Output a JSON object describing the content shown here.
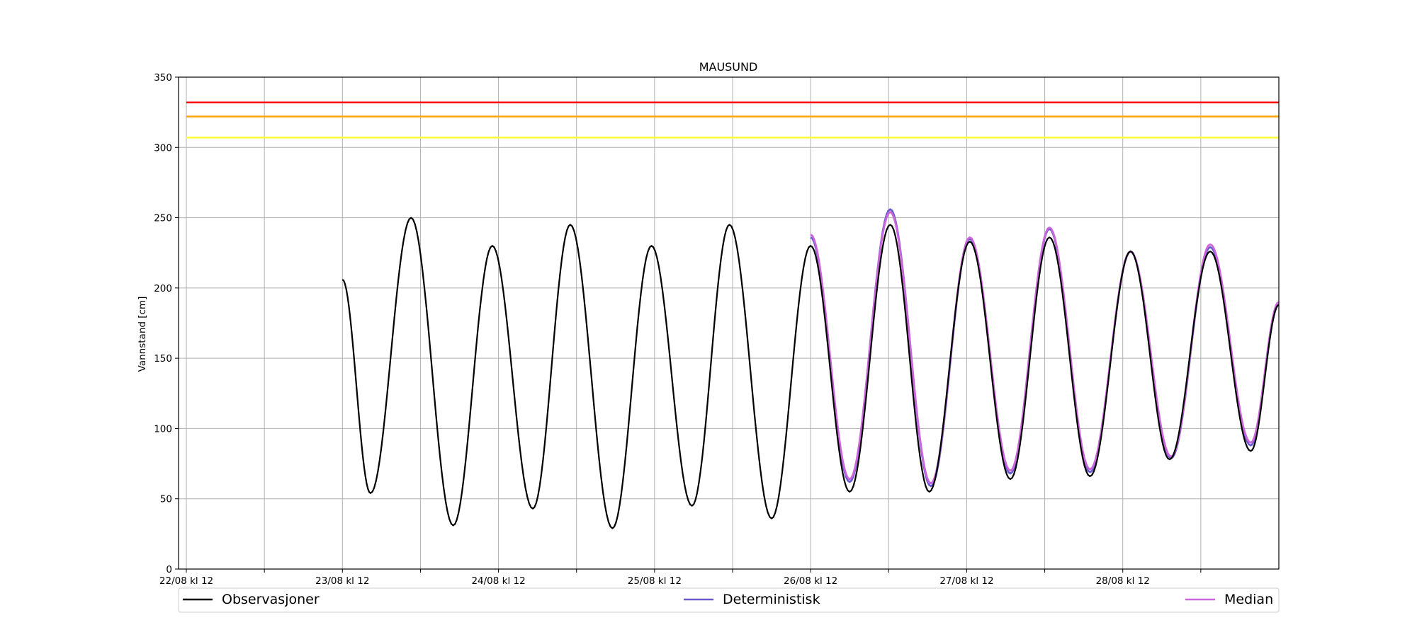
{
  "chart_data": {
    "type": "line",
    "title": "MAUSUND",
    "xlabel": "",
    "ylabel": "Vannstand [cm]",
    "xlim": [
      -0.05,
      7
    ],
    "ylim": [
      0,
      350
    ],
    "yticks": [
      0,
      50,
      100,
      150,
      200,
      250,
      300,
      350
    ],
    "xtick_positions": [
      0,
      0.5,
      1,
      1.5,
      2,
      2.5,
      3,
      3.5,
      4,
      4.5,
      5,
      5.5,
      6,
      6.5
    ],
    "xtick_labels": [
      {
        "pos": 0,
        "label": "22/08 kl 12"
      },
      {
        "pos": 1,
        "label": "23/08 kl 12"
      },
      {
        "pos": 2,
        "label": "24/08 kl 12"
      },
      {
        "pos": 3,
        "label": "25/08 kl 12"
      },
      {
        "pos": 4,
        "label": "26/08 kl 12"
      },
      {
        "pos": 5,
        "label": "27/08 kl 12"
      },
      {
        "pos": 6,
        "label": "28/08 kl 12"
      }
    ],
    "grid": true,
    "legend": "bottom",
    "thresholds": [
      {
        "value": 332,
        "color": "#ff0000"
      },
      {
        "value": 322,
        "color": "#ffa500"
      },
      {
        "value": 307,
        "color": "#ffff33"
      }
    ],
    "series": [
      {
        "name": "Observasjoner",
        "color": "#000000",
        "extremes": [
          [
            1.0,
            206
          ],
          [
            1.18,
            54
          ],
          [
            1.44,
            250
          ],
          [
            1.71,
            31
          ],
          [
            1.96,
            230
          ],
          [
            2.22,
            43
          ],
          [
            2.46,
            245
          ],
          [
            2.73,
            29
          ],
          [
            2.98,
            230
          ],
          [
            3.24,
            45
          ],
          [
            3.48,
            245
          ],
          [
            3.75,
            36
          ],
          [
            4.0,
            230
          ],
          [
            4.25,
            55
          ],
          [
            4.51,
            245
          ],
          [
            4.76,
            55
          ],
          [
            5.02,
            233
          ],
          [
            5.28,
            64
          ],
          [
            5.53,
            236
          ],
          [
            5.79,
            66
          ],
          [
            6.05,
            226
          ],
          [
            6.3,
            78
          ],
          [
            6.56,
            226
          ],
          [
            6.82,
            84
          ],
          [
            7.0,
            188
          ]
        ]
      },
      {
        "name": "Deterministisk",
        "color": "#6a5acd",
        "extremes": [
          [
            4.0,
            236
          ],
          [
            4.25,
            62
          ],
          [
            4.51,
            256
          ],
          [
            4.77,
            59
          ],
          [
            5.02,
            235
          ],
          [
            5.28,
            68
          ],
          [
            5.53,
            242
          ],
          [
            5.79,
            69
          ],
          [
            6.05,
            226
          ],
          [
            6.31,
            79
          ],
          [
            6.56,
            229
          ],
          [
            6.82,
            88
          ],
          [
            7.0,
            188
          ]
        ]
      },
      {
        "name": "Median",
        "color": "#cc66dd",
        "extremes": [
          [
            4.0,
            238
          ],
          [
            4.25,
            64
          ],
          [
            4.51,
            254
          ],
          [
            4.77,
            61
          ],
          [
            5.02,
            236
          ],
          [
            5.28,
            70
          ],
          [
            5.53,
            243
          ],
          [
            5.79,
            71
          ],
          [
            6.05,
            226
          ],
          [
            6.31,
            80
          ],
          [
            6.56,
            231
          ],
          [
            6.82,
            90
          ],
          [
            7.0,
            190
          ]
        ]
      }
    ]
  }
}
